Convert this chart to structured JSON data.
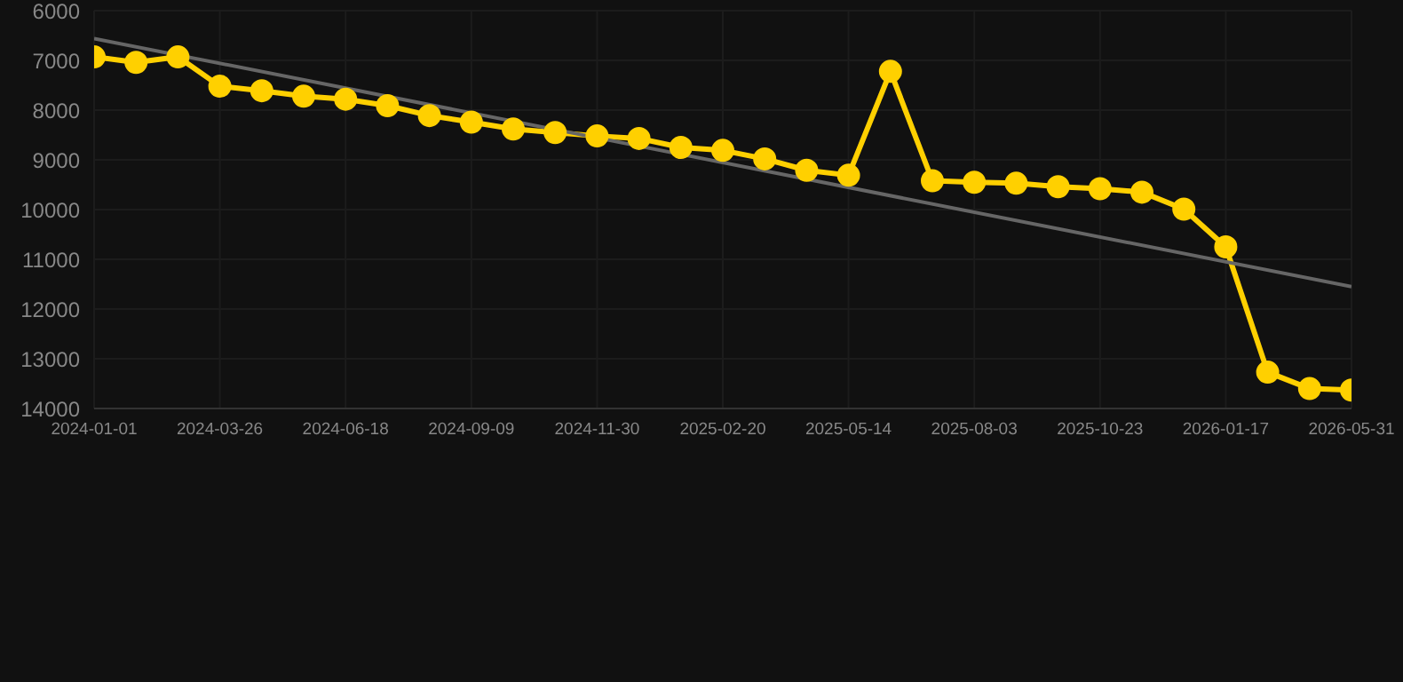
{
  "chart_data": {
    "type": "line",
    "categories": [
      "2024-01-01",
      null,
      null,
      "2024-03-26",
      null,
      null,
      "2024-06-18",
      null,
      null,
      "2024-09-09",
      null,
      null,
      "2024-11-30",
      null,
      null,
      "2025-02-20",
      null,
      null,
      "2025-05-14",
      null,
      null,
      "2025-08-03",
      null,
      null,
      "2025-10-23",
      null,
      null,
      "2026-01-17",
      null,
      null,
      "2026-05-31"
    ],
    "series": [
      {
        "color": "#ffd000",
        "marker": "circle",
        "values": [
          6930,
          7040,
          6930,
          7520,
          7610,
          7720,
          7780,
          7910,
          8110,
          8240,
          8380,
          8450,
          8520,
          8570,
          8750,
          8810,
          8980,
          9210,
          9310,
          7220,
          9420,
          9450,
          9470,
          9540,
          9580,
          9650,
          9990,
          10750,
          13270,
          13600,
          13630
        ]
      },
      {
        "color": "#666666",
        "marker": "none",
        "values": [
          6560,
          null,
          null,
          null,
          null,
          null,
          null,
          null,
          null,
          null,
          null,
          null,
          null,
          null,
          null,
          null,
          null,
          null,
          null,
          null,
          null,
          null,
          null,
          null,
          null,
          null,
          null,
          null,
          null,
          null,
          11550
        ]
      }
    ],
    "ylim": [
      14000,
      6000
    ],
    "yticks": [
      6000,
      7000,
      8000,
      9000,
      10000,
      11000,
      12000,
      13000,
      14000
    ],
    "grid": true,
    "line_style": "solid"
  }
}
